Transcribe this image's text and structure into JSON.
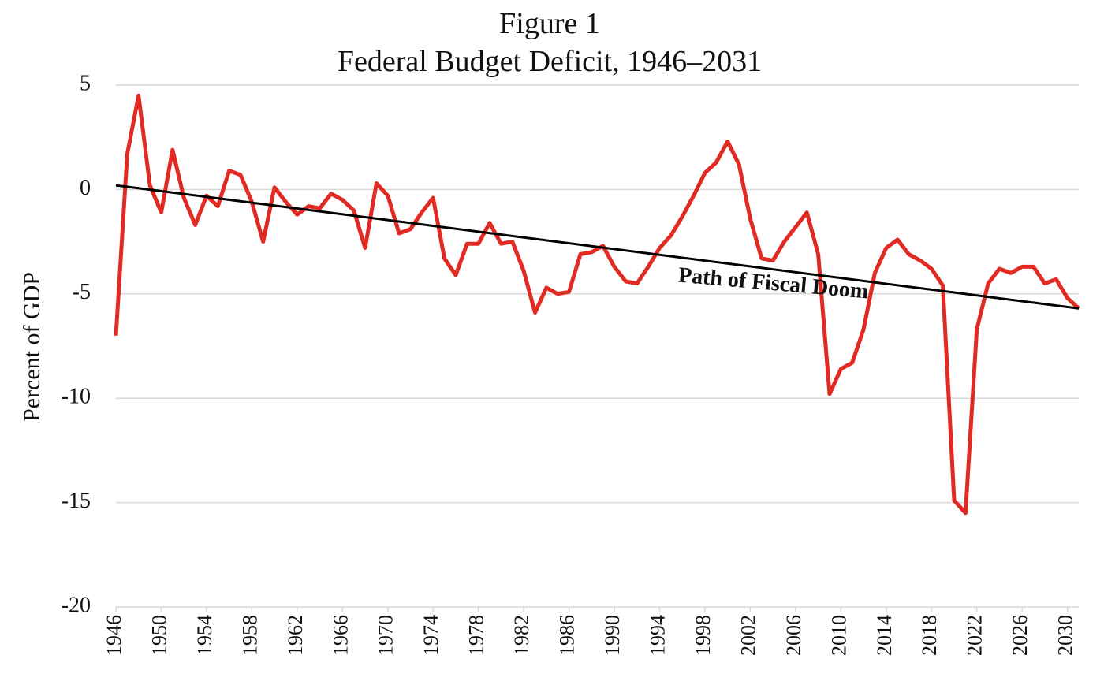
{
  "chart_data": {
    "type": "line",
    "title": "Figure 1",
    "subtitle": "Federal Budget Deficit, 1946–2031",
    "y_label": "Percent of GDP",
    "annotation": "Path of Fiscal Doom",
    "x": [
      1946,
      1947,
      1948,
      1949,
      1950,
      1951,
      1952,
      1953,
      1954,
      1955,
      1956,
      1957,
      1958,
      1959,
      1960,
      1961,
      1962,
      1963,
      1964,
      1965,
      1966,
      1967,
      1968,
      1969,
      1970,
      1971,
      1972,
      1973,
      1974,
      1975,
      1976,
      1977,
      1978,
      1979,
      1980,
      1981,
      1982,
      1983,
      1984,
      1985,
      1986,
      1987,
      1988,
      1989,
      1990,
      1991,
      1992,
      1993,
      1994,
      1995,
      1996,
      1997,
      1998,
      1999,
      2000,
      2001,
      2002,
      2003,
      2004,
      2005,
      2006,
      2007,
      2008,
      2009,
      2010,
      2011,
      2012,
      2013,
      2014,
      2015,
      2016,
      2017,
      2018,
      2019,
      2020,
      2021,
      2022,
      2023,
      2024,
      2025,
      2026,
      2027,
      2028,
      2029,
      2030,
      2031
    ],
    "values": [
      -7.0,
      1.7,
      4.5,
      0.2,
      -1.1,
      1.9,
      -0.4,
      -1.7,
      -0.3,
      -0.8,
      0.9,
      0.7,
      -0.6,
      -2.5,
      0.1,
      -0.6,
      -1.2,
      -0.8,
      -0.9,
      -0.2,
      -0.5,
      -1.0,
      -2.8,
      0.3,
      -0.3,
      -2.1,
      -1.9,
      -1.1,
      -0.4,
      -3.3,
      -4.1,
      -2.6,
      -2.6,
      -1.6,
      -2.6,
      -2.5,
      -3.9,
      -5.9,
      -4.7,
      -5.0,
      -4.9,
      -3.1,
      -3.0,
      -2.7,
      -3.7,
      -4.4,
      -4.5,
      -3.7,
      -2.8,
      -2.2,
      -1.3,
      -0.3,
      0.8,
      1.3,
      2.3,
      1.2,
      -1.4,
      -3.3,
      -3.4,
      -2.5,
      -1.8,
      -1.1,
      -3.1,
      -9.8,
      -8.6,
      -8.3,
      -6.7,
      -4.0,
      -2.8,
      -2.4,
      -3.1,
      -3.4,
      -3.8,
      -4.6,
      -14.9,
      -15.5,
      -6.7,
      -4.5,
      -3.8,
      -4.0,
      -3.7,
      -3.7,
      -4.5,
      -4.3,
      -5.2,
      -5.7
    ],
    "color": "#e02a22",
    "trend": {
      "x": [
        1946,
        2031
      ],
      "values": [
        0.2,
        -5.7
      ],
      "color": "#000000"
    },
    "xlim": [
      1946,
      2031
    ],
    "xticks": [
      1946,
      1950,
      1954,
      1958,
      1962,
      1966,
      1970,
      1974,
      1978,
      1982,
      1986,
      1990,
      1994,
      1998,
      2002,
      2006,
      2010,
      2014,
      2018,
      2022,
      2026,
      2030
    ],
    "ylim": [
      -20,
      5
    ],
    "yticks": [
      5,
      0,
      -5,
      -10,
      -15,
      -20
    ],
    "grid": true
  }
}
